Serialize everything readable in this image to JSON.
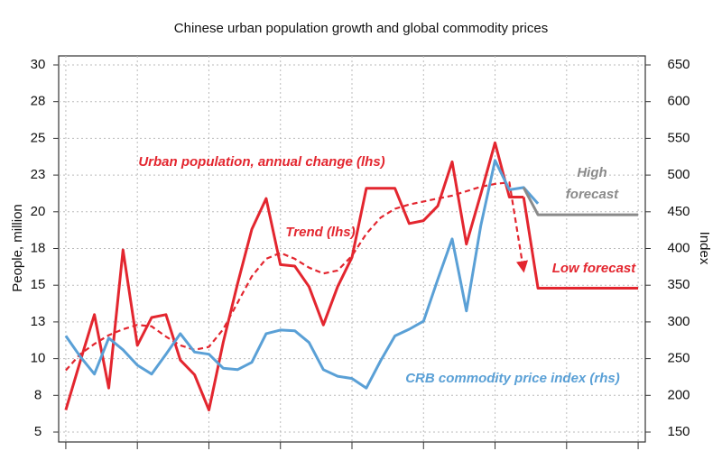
{
  "chart_data": {
    "type": "line",
    "subtitle": "Chinese urban population growth and global commodity prices",
    "ylabel": "People, million",
    "y2label": "Index",
    "categories": [
      null,
      null,
      null,
      null,
      null,
      null,
      null,
      null,
      null,
      null,
      null,
      null,
      null,
      null,
      null,
      null,
      null,
      null,
      null,
      null,
      null,
      null,
      null,
      null,
      null,
      null,
      null,
      null,
      null,
      null,
      null,
      null,
      null,
      null,
      null,
      null,
      null,
      null,
      null,
      null,
      null
    ],
    "ylim": [
      5,
      30
    ],
    "yticks": [
      5,
      {
        "value": 7.5,
        "label": "8"
      },
      10,
      {
        "value": 12.5,
        "label": "13"
      },
      15,
      {
        "value": 17.5,
        "label": "18"
      },
      20,
      {
        "value": 22.5,
        "label": "23"
      },
      25,
      {
        "value": 27.5,
        "label": "28"
      },
      30
    ],
    "y2lim": [
      150,
      650
    ],
    "y2ticks": [
      150,
      200,
      250,
      300,
      350,
      400,
      450,
      500,
      550,
      600,
      650
    ],
    "grid": true,
    "series": [
      {
        "name": "Urban population, annual change (lhs)",
        "color": "#e3262f",
        "style": "solid",
        "values": [
          6.5,
          9.8,
          13.0,
          8.0,
          17.4,
          10.9,
          12.8,
          13.0,
          9.9,
          8.9,
          6.5,
          11.1,
          15.1,
          18.8,
          20.9,
          16.4,
          16.3,
          14.9,
          12.3,
          14.9,
          16.9,
          21.6,
          21.6,
          21.6,
          19.2,
          19.4,
          20.4,
          23.4,
          17.8,
          21.2,
          24.7,
          21.0,
          21.0,
          null,
          null,
          null,
          null,
          null,
          null,
          null,
          null
        ]
      },
      {
        "name": "Trend (lhs)",
        "color": "#e3262f",
        "style": "dashed",
        "values": [
          9.2,
          10.3,
          11.0,
          11.6,
          12.0,
          12.3,
          12.2,
          11.5,
          10.9,
          10.6,
          10.8,
          12.0,
          13.8,
          15.6,
          16.8,
          17.2,
          16.8,
          16.2,
          15.8,
          16.0,
          17.0,
          18.5,
          19.6,
          20.2,
          20.5,
          20.7,
          20.9,
          21.1,
          21.4,
          21.7,
          21.9,
          22.0,
          16.0,
          null,
          null,
          null,
          null,
          null,
          null,
          null,
          null
        ]
      },
      {
        "name": "CRB commodity price index (rhs)",
        "color": "#5aa0d6",
        "style": "solid",
        "axis": "y2",
        "values": [
          281,
          253,
          229,
          278,
          262,
          241,
          229,
          256,
          284,
          259,
          256,
          237,
          235,
          245,
          284,
          289,
          288,
          272,
          235,
          226,
          223,
          210,
          247,
          281,
          290,
          301,
          358,
          413,
          315,
          431,
          520,
          480,
          483,
          461,
          null,
          null,
          null,
          null,
          null,
          null,
          null
        ]
      },
      {
        "name": "High forecast",
        "color": "#8a8a8a",
        "style": "solid",
        "axis": "y2",
        "values": [
          null,
          null,
          null,
          null,
          null,
          null,
          null,
          null,
          null,
          null,
          null,
          null,
          null,
          null,
          null,
          null,
          null,
          null,
          null,
          null,
          null,
          null,
          null,
          null,
          null,
          null,
          null,
          null,
          null,
          null,
          null,
          null,
          483,
          446,
          446,
          446,
          446,
          446,
          446,
          446,
          446
        ]
      },
      {
        "name": "Low forecast",
        "color": "#e3262f",
        "style": "solid",
        "values": [
          null,
          null,
          null,
          null,
          null,
          null,
          null,
          null,
          null,
          null,
          null,
          null,
          null,
          null,
          null,
          null,
          null,
          null,
          null,
          null,
          null,
          null,
          null,
          null,
          null,
          null,
          null,
          null,
          null,
          null,
          null,
          null,
          21.0,
          14.8,
          14.8,
          14.8,
          14.8,
          14.8,
          14.8,
          14.8,
          14.8
        ]
      }
    ]
  }
}
